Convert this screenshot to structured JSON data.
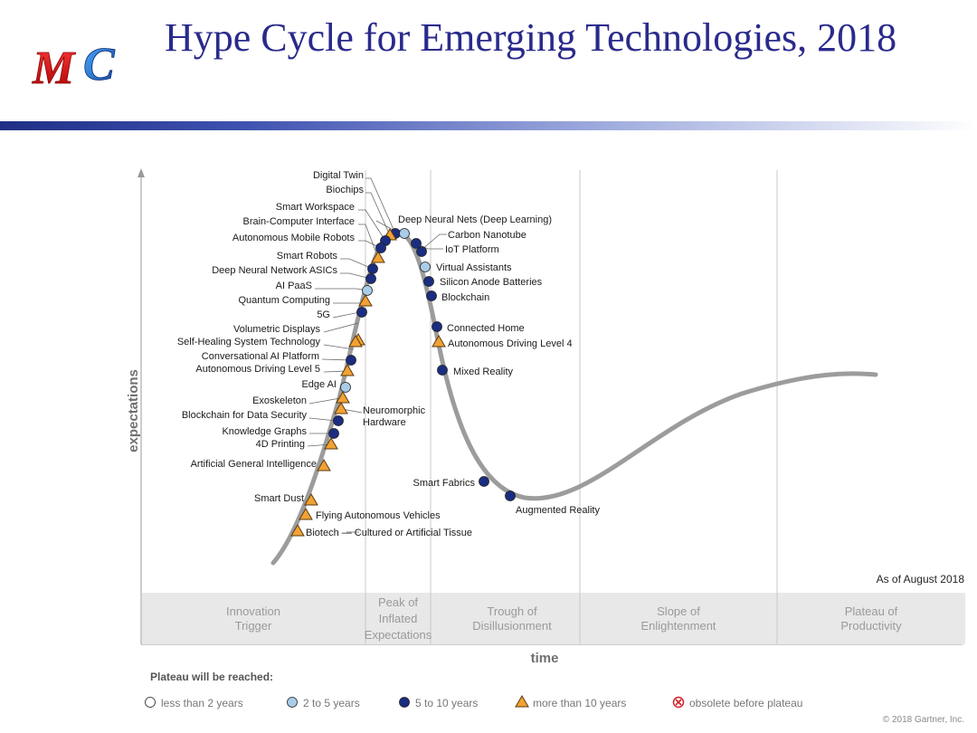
{
  "slide": {
    "title": "Hype Cycle for Emerging Technologies, 2018",
    "logo_text": "MC"
  },
  "chart": {
    "y_axis_label": "expectations",
    "x_axis_label": "time",
    "as_of": "As of August 2018",
    "phases": [
      "Innovation Trigger",
      "Peak of Inflated Expectations",
      "Trough of Disillusionment",
      "Slope of Enlightenment",
      "Plateau of Productivity"
    ],
    "technologies": [
      {
        "name": "Digital Twin",
        "marker": "5-10"
      },
      {
        "name": "Biochips",
        "marker": "10+"
      },
      {
        "name": "Smart Workspace",
        "marker": "5-10"
      },
      {
        "name": "Brain-Computer Interface",
        "marker": "10+"
      },
      {
        "name": "Autonomous Mobile Robots",
        "marker": "5-10"
      },
      {
        "name": "Smart Robots",
        "marker": "5-10"
      },
      {
        "name": "Deep Neural Network ASICs",
        "marker": "5-10"
      },
      {
        "name": "AI PaaS",
        "marker": "2-5"
      },
      {
        "name": "Quantum Computing",
        "marker": "10+"
      },
      {
        "name": "5G",
        "marker": "5-10"
      },
      {
        "name": "Volumetric Displays",
        "marker": "10+"
      },
      {
        "name": "Self-Healing System Technology",
        "marker": "10+"
      },
      {
        "name": "Conversational AI Platform",
        "marker": "5-10"
      },
      {
        "name": "Autonomous Driving Level 5",
        "marker": "10+"
      },
      {
        "name": "Edge AI",
        "marker": "2-5"
      },
      {
        "name": "Exoskeleton",
        "marker": "10+"
      },
      {
        "name": "Blockchain for Data Security",
        "marker": "5-10"
      },
      {
        "name": "Neuromorphic Hardware",
        "marker": "10+"
      },
      {
        "name": "Knowledge Graphs",
        "marker": "5-10"
      },
      {
        "name": "4D Printing",
        "marker": "10+"
      },
      {
        "name": "Artificial General Intelligence",
        "marker": "10+"
      },
      {
        "name": "Smart Dust",
        "marker": "10+"
      },
      {
        "name": "Flying Autonomous Vehicles",
        "marker": "10+"
      },
      {
        "name": "Biotech — Cultured or Artificial Tissue",
        "marker": "10+"
      },
      {
        "name": "Deep Neural Nets (Deep Learning)",
        "marker": "2-5"
      },
      {
        "name": "Carbon Nanotube",
        "marker": "5-10"
      },
      {
        "name": "IoT Platform",
        "marker": "5-10"
      },
      {
        "name": "Virtual Assistants",
        "marker": "2-5"
      },
      {
        "name": "Silicon Anode Batteries",
        "marker": "5-10"
      },
      {
        "name": "Blockchain",
        "marker": "5-10"
      },
      {
        "name": "Connected Home",
        "marker": "5-10"
      },
      {
        "name": "Autonomous Driving Level 4",
        "marker": "10+"
      },
      {
        "name": "Mixed Reality",
        "marker": "5-10"
      },
      {
        "name": "Smart Fabrics",
        "marker": "5-10"
      },
      {
        "name": "Augmented Reality",
        "marker": "5-10"
      }
    ],
    "legend": {
      "title": "Plateau will be reached:",
      "items": [
        {
          "key": "lt2",
          "label": "less than 2 years"
        },
        {
          "key": "2-5",
          "label": "2 to 5 years"
        },
        {
          "key": "5-10",
          "label": "5 to 10 years"
        },
        {
          "key": "10+",
          "label": "more than 10 years"
        },
        {
          "key": "obsolete",
          "label": "obsolete before plateau"
        }
      ]
    },
    "colors": {
      "dark_blue": "#1a2d80",
      "light_blue": "#a9cde9",
      "orange": "#f2a233",
      "red": "#d2232a",
      "curve": "#9c9c9c",
      "phase_band": "#e8e8e8"
    },
    "copyright": "© 2018 Gartner, Inc."
  }
}
